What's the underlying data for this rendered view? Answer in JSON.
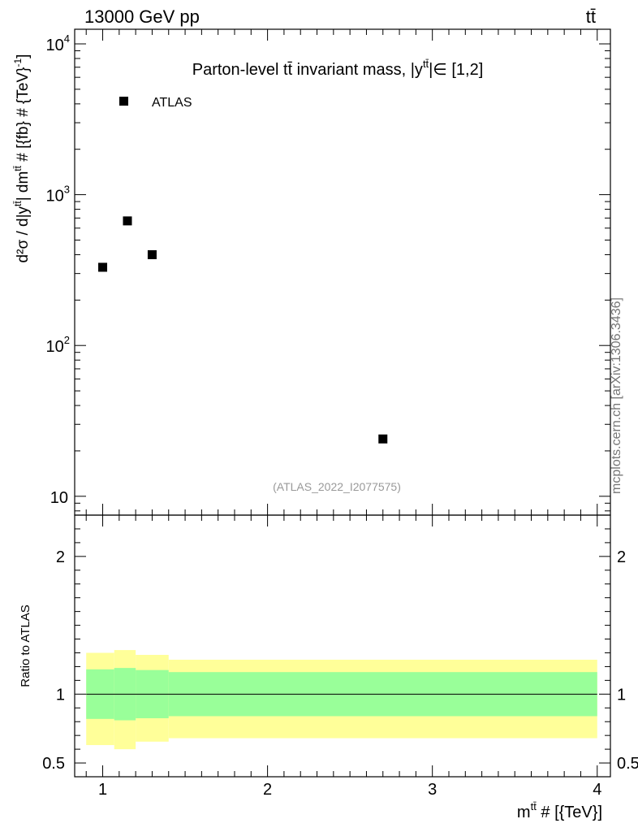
{
  "header": {
    "energy_label": "13000 GeV pp",
    "process_label": "tt̄"
  },
  "plot_title": "Parton-level tt̄ invariant mass, |y",
  "plot_title_sup": "tt̄",
  "plot_title_tail": "|∈ [1,2]",
  "analysis_id": "(ATLAS_2022_I2077575)",
  "watermark": "mcplots.cern.ch [arXiv:1306.3436]",
  "ratio_ylabel": "Ratio to ATLAS",
  "xlabel_main": "m",
  "xlabel_sup": "tt̄",
  "xlabel_tail": " # [{TeV}]",
  "ylabel_main": "d²σ / d|y",
  "ylabel_sup1": "tt̄",
  "ylabel_mid": "| dm",
  "ylabel_sup2": "tt̄",
  "ylabel_tail": " # [{fb} # {TeV}",
  "ylabel_sup3": "-1",
  "ylabel_end": "]",
  "chart_data": [
    {
      "type": "scatter",
      "title": "Parton-level tt̄ invariant mass, |ytt̄|∈ [1,2]",
      "xlabel": "mtt̄ # [{TeV}]",
      "ylabel": "d²σ / d|ytt̄| dmtt̄ # [{fb} # {TeV}-1]",
      "yscale": "log",
      "xlim": [
        0.83,
        4.08
      ],
      "ylim": [
        7.5,
        12500
      ],
      "legend_position": "top-left",
      "series": [
        {
          "name": "ATLAS",
          "color": "#000000",
          "marker": "square",
          "x": [
            1.0,
            1.15,
            1.3,
            2.7
          ],
          "y": [
            330,
            670,
            400,
            24
          ]
        }
      ],
      "y_ticks": [
        {
          "value": 10,
          "label": "10"
        },
        {
          "value": 100,
          "label": "10",
          "sup": "2"
        },
        {
          "value": 1000,
          "label": "10",
          "sup": "3"
        },
        {
          "value": 10000,
          "label": "10",
          "sup": "4"
        }
      ]
    },
    {
      "type": "area",
      "ylabel": "Ratio to ATLAS",
      "xlim": [
        0.83,
        4.08
      ],
      "ylim": [
        0.4,
        2.3
      ],
      "reference_line": 1.0,
      "x_ticks": [
        1,
        2,
        3,
        4
      ],
      "y_ticks": [
        0.5,
        1,
        2
      ],
      "bands": [
        {
          "name": "outer",
          "color": "#ffff99",
          "bins": [
            {
              "x_low": 0.9,
              "x_high": 1.07,
              "low": 0.63,
              "high": 1.3
            },
            {
              "x_low": 1.07,
              "x_high": 1.2,
              "low": 0.6,
              "high": 1.32
            },
            {
              "x_low": 1.2,
              "x_high": 1.4,
              "low": 0.655,
              "high": 1.285
            },
            {
              "x_low": 1.4,
              "x_high": 4.0,
              "low": 0.68,
              "high": 1.25
            }
          ]
        },
        {
          "name": "inner",
          "color": "#99ff99",
          "bins": [
            {
              "x_low": 0.9,
              "x_high": 1.07,
              "low": 0.82,
              "high": 1.18
            },
            {
              "x_low": 1.07,
              "x_high": 1.2,
              "low": 0.81,
              "high": 1.19
            },
            {
              "x_low": 1.2,
              "x_high": 1.4,
              "low": 0.825,
              "high": 1.175
            },
            {
              "x_low": 1.4,
              "x_high": 4.0,
              "low": 0.84,
              "high": 1.16
            }
          ]
        }
      ]
    }
  ]
}
